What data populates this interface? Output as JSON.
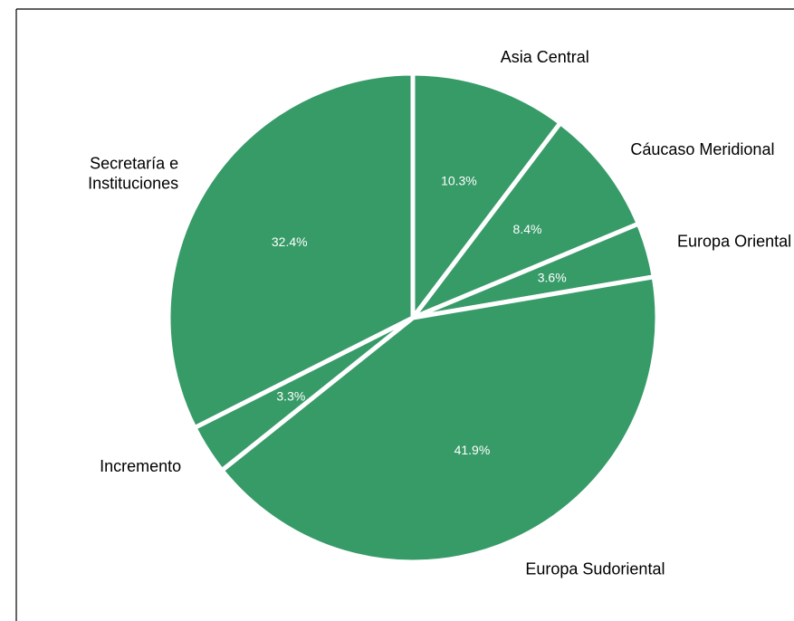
{
  "colors": {
    "slice": "#379b68",
    "separator": "#ffffff",
    "text_inside": "#ffffff",
    "text_outside": "#000000"
  },
  "chart_data": {
    "type": "pie",
    "title": "",
    "slices": [
      {
        "label": "Asia Central",
        "value": 10.3,
        "pct_label": "10.3%"
      },
      {
        "label": "Cáucaso Meridional",
        "value": 8.4,
        "pct_label": "8.4%"
      },
      {
        "label": "Europa Oriental",
        "value": 3.6,
        "pct_label": "3.6%"
      },
      {
        "label": "Europa Sudoriental",
        "value": 41.9,
        "pct_label": "41.9%"
      },
      {
        "label": "Incremento",
        "value": 3.3,
        "pct_label": "3.3%"
      },
      {
        "label": "Secretaría e Instituciones",
        "value": 32.4,
        "pct_label": "32.4%"
      }
    ],
    "start_angle": "12 o'clock",
    "direction": "clockwise",
    "legend": "none"
  }
}
